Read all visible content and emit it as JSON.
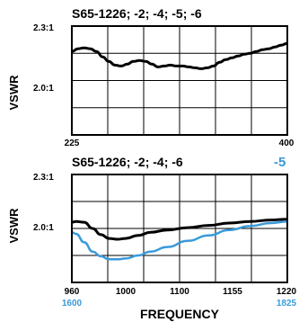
{
  "charts": [
    {
      "title": "S65-1226; -2; -4; -5; -6",
      "ylabel": "VSWR",
      "yticks": [
        "2.3:1",
        "2.0:1"
      ],
      "xticks": [
        "225",
        "400"
      ]
    },
    {
      "title": "S65-1226; -2; -4; -6",
      "title_extra": "-5",
      "ylabel": "VSWR",
      "yticks": [
        "2.3:1",
        "2.0:1"
      ],
      "xticks": [
        "960",
        "1000",
        "1100",
        "1155",
        "1220"
      ],
      "xticks_alt": [
        "1600",
        "1825"
      ],
      "xlabel": "FREQUENCY"
    }
  ],
  "colors": {
    "black_series": "#000000",
    "blue_series": "#3a9ad9",
    "grid": "#000000"
  },
  "chart_data": [
    {
      "type": "line",
      "title": "S65-1226; -2; -4; -5; -6",
      "xlabel": "",
      "ylabel": "VSWR",
      "xlim": [
        225,
        400
      ],
      "ylim": [
        1.75,
        2.35
      ],
      "grid": true,
      "series": [
        {
          "x": [
            225,
            230,
            235,
            240,
            245,
            250,
            255,
            260,
            265,
            270,
            275,
            280,
            285,
            290,
            295,
            300,
            305,
            310,
            315,
            320,
            325,
            330,
            335,
            340,
            345,
            350,
            355,
            360,
            365,
            370,
            375,
            380,
            385,
            390,
            395,
            400
          ],
          "values": [
            2.21,
            2.225,
            2.23,
            2.225,
            2.21,
            2.18,
            2.155,
            2.135,
            2.13,
            2.14,
            2.155,
            2.16,
            2.155,
            2.14,
            2.125,
            2.13,
            2.135,
            2.13,
            2.13,
            2.125,
            2.12,
            2.115,
            2.12,
            2.13,
            2.15,
            2.165,
            2.175,
            2.185,
            2.195,
            2.2,
            2.21,
            2.22,
            2.225,
            2.235,
            2.245,
            2.255
          ]
        }
      ]
    },
    {
      "type": "line",
      "title": "S65-1226; -2; -4; -6",
      "xlabel": "FREQUENCY",
      "ylabel": "VSWR",
      "xlim": [
        960,
        1220
      ],
      "ylim": [
        1.6,
        2.3
      ],
      "grid": true,
      "series": [
        {
          "x": [
            960,
            965,
            975,
            985,
            995,
            1005,
            1015,
            1025,
            1040,
            1055,
            1075,
            1100,
            1125,
            1150,
            1175,
            1200,
            1220
          ],
          "values": [
            1.99,
            1.995,
            1.99,
            1.95,
            1.91,
            1.885,
            1.88,
            1.885,
            1.905,
            1.925,
            1.94,
            1.955,
            1.97,
            1.985,
            1.995,
            2.005,
            2.01
          ]
        },
        {
          "name": "-5",
          "x": [
            960,
            965,
            975,
            985,
            995,
            1005,
            1015,
            1025,
            1040,
            1055,
            1075,
            1100,
            1125,
            1150,
            1175,
            1200,
            1220
          ],
          "values": [
            1.925,
            1.915,
            1.86,
            1.8,
            1.77,
            1.75,
            1.75,
            1.755,
            1.775,
            1.8,
            1.83,
            1.87,
            1.905,
            1.94,
            1.965,
            1.985,
            1.995
          ]
        }
      ]
    }
  ]
}
